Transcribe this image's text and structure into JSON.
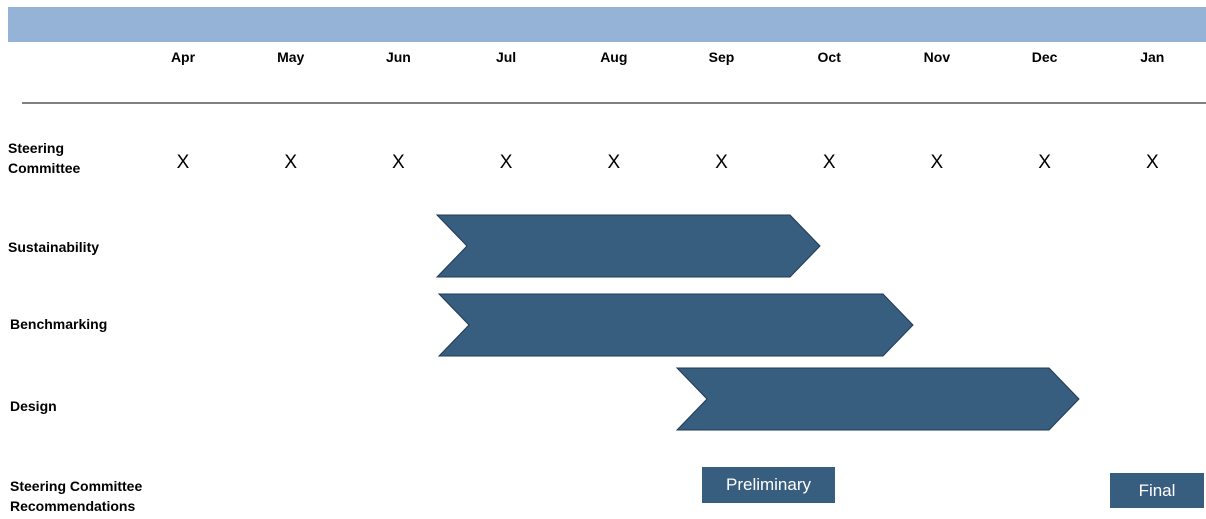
{
  "months": [
    "Apr",
    "May",
    "Jun",
    "Jul",
    "Aug",
    "Sep",
    "Oct",
    "Nov",
    "Dec",
    "Jan"
  ],
  "rows": [
    {
      "label": "Steering Committee",
      "marks": [
        "X",
        "X",
        "X",
        "X",
        "X",
        "X",
        "X",
        "X",
        "X",
        "X"
      ]
    },
    {
      "label": "Sustainability"
    },
    {
      "label": "Benchmarking"
    },
    {
      "label": "Design"
    },
    {
      "label": "Steering Committee Recommendations",
      "milestones": [
        "Preliminary",
        "Final"
      ]
    }
  ]
}
